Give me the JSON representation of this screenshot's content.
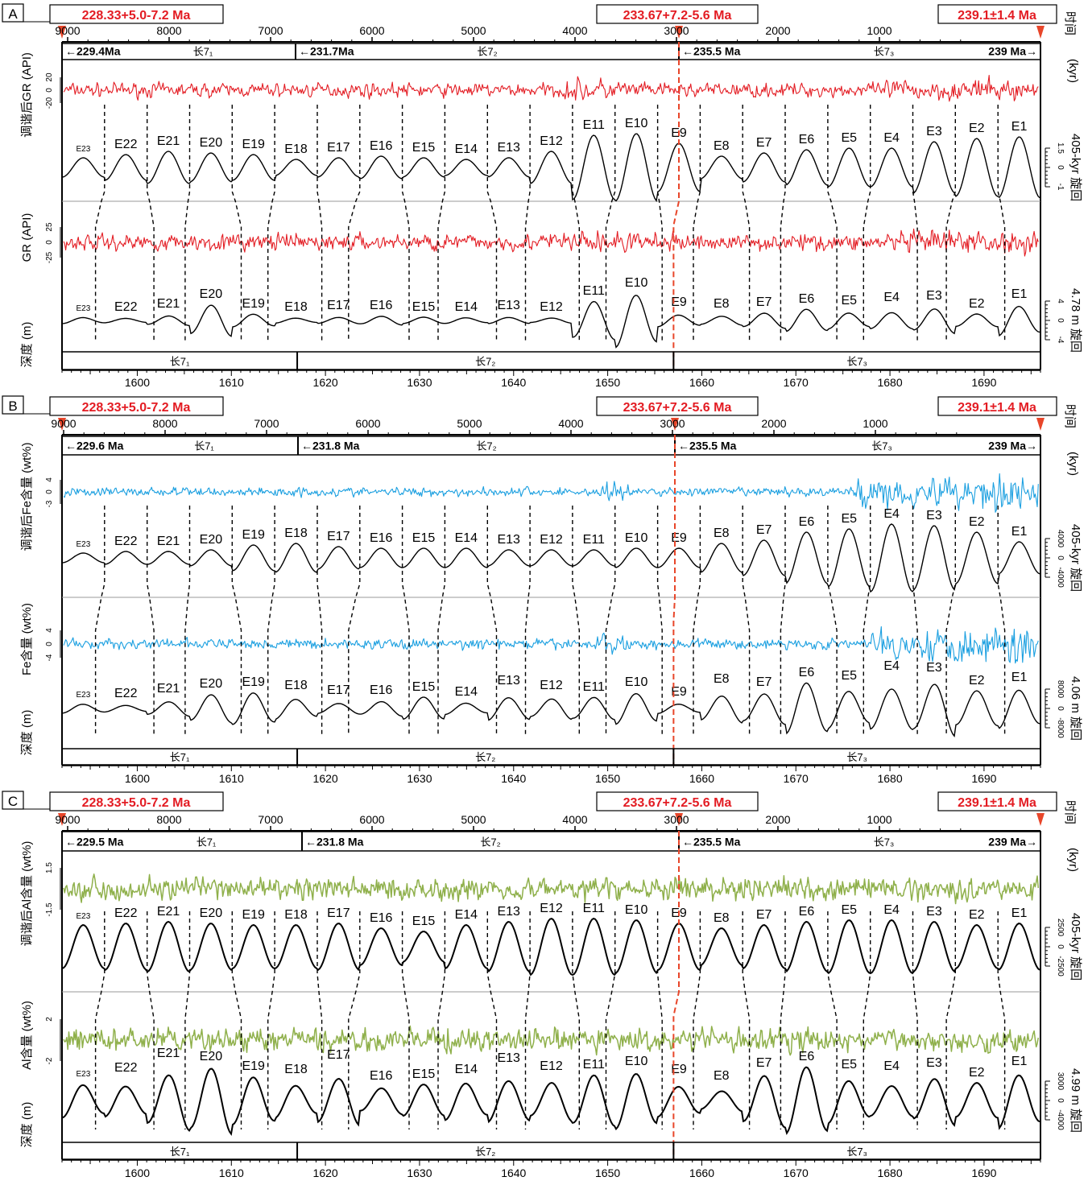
{
  "chart_data": {
    "type": "line",
    "layout_note_free": true,
    "shared": {
      "time_ticks": [
        "9000",
        "8000",
        "7000",
        "6000",
        "5000",
        "4000",
        "3000",
        "2000",
        "1000"
      ],
      "time_values": [
        9000,
        8000,
        7000,
        6000,
        5000,
        4000,
        3000,
        2000,
        1000
      ],
      "time_label_a": "时间",
      "time_label_b": "(kyr)",
      "depth_ticks": [
        "1600",
        "1610",
        "1620",
        "1630",
        "1640",
        "1650",
        "1660",
        "1670",
        "1680",
        "1690"
      ],
      "depth_values": [
        1600,
        1610,
        1620,
        1630,
        1640,
        1650,
        1660,
        1670,
        1680,
        1690
      ],
      "depth_range": [
        1592,
        1696
      ],
      "depth_label": "深度 (m)",
      "ages_red": [
        "228.33+5.0-7.2 Ma",
        "233.67+7.2-5.6 Ma",
        "239.1±1.4 Ma"
      ],
      "units": [
        "长7₁",
        "长7₂",
        "长7₃"
      ],
      "cycles": [
        "E23",
        "E22",
        "E21",
        "E20",
        "E19",
        "E18",
        "E17",
        "E16",
        "E15",
        "E14",
        "E13",
        "E12",
        "E11",
        "E10",
        "E9",
        "E8",
        "E7",
        "E6",
        "E5",
        "E4",
        "E3",
        "E2",
        "E1"
      ]
    },
    "panels": [
      {
        "letter": "A",
        "ages_time": [
          "229.4Ma",
          "231.7Ma",
          "235.5 Ma",
          "239 Ma"
        ],
        "series": [
          {
            "name": "调谐后GR (API)",
            "ticks": [
              "20",
              "0",
              "-20"
            ],
            "color": "#e31c23"
          },
          {
            "name": "GR (API)",
            "ticks": [
              "25",
              "0",
              "-25"
            ],
            "color": "#e31c23"
          }
        ],
        "filter_top": {
          "name": "405-kyr 旋回",
          "ticks": [
            "1.5",
            "0",
            "-1"
          ]
        },
        "filter_bottom": {
          "name": "4.78 m 旋回",
          "ticks": [
            "4",
            "0",
            "-4"
          ]
        }
      },
      {
        "letter": "B",
        "ages_time": [
          "229.6 Ma",
          "231.8 Ma",
          "235.5 Ma",
          "239 Ma"
        ],
        "series": [
          {
            "name": "调谐后Fe含量 (wt%)",
            "ticks": [
              "4",
              "0",
              "-3"
            ],
            "color": "#1a9fe0"
          },
          {
            "name": "Fe含量 (wt%)",
            "ticks": [
              "4",
              "0",
              "-4"
            ],
            "color": "#1a9fe0"
          }
        ],
        "filter_top": {
          "name": "405-kyr 旋回",
          "ticks": [
            "4000",
            "0",
            "-4000"
          ]
        },
        "filter_bottom": {
          "name": "4.06 m 旋回",
          "ticks": [
            "8000",
            "0",
            "-8000"
          ]
        }
      },
      {
        "letter": "C",
        "ages_time": [
          "229.5 Ma",
          "231.8 Ma",
          "235.5 Ma",
          "239 Ma"
        ],
        "series": [
          {
            "name": "调谐后Al含量 (wt%)",
            "ticks": [
              "1.5",
              "-1.5"
            ],
            "color": "#8fb04b"
          },
          {
            "name": "Al含量 (wt%)",
            "ticks": [
              "2",
              "-2"
            ],
            "color": "#8fb04b"
          }
        ],
        "filter_top": {
          "name": "405-kyr 旋回",
          "ticks": [
            "2500",
            "0",
            "-2500"
          ]
        },
        "filter_bottom": {
          "name": "4.99 m 旋回",
          "ticks": [
            "3000",
            "0",
            "-4000"
          ]
        }
      }
    ]
  }
}
